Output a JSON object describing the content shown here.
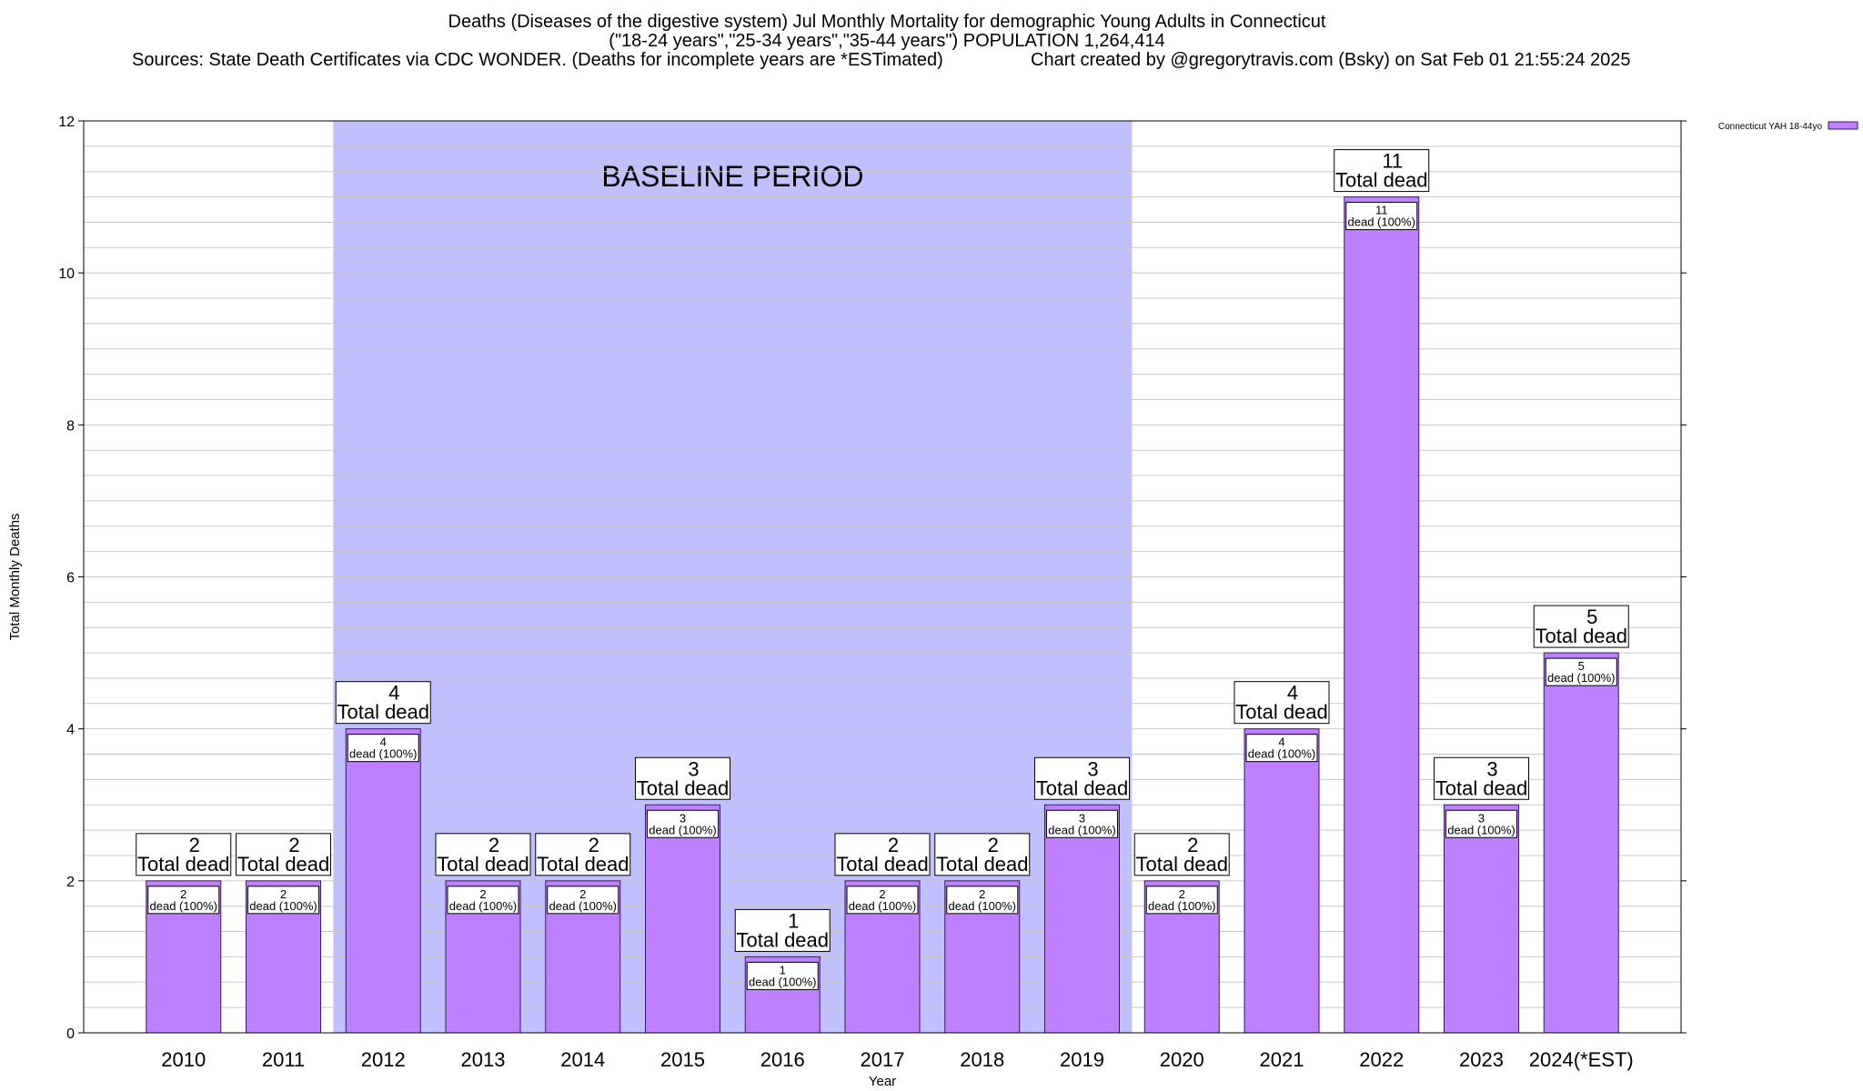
{
  "header": {
    "title_line1": "Deaths (Diseases of the digestive system) Jul Monthly Mortality for demographic Young Adults in Connecticut",
    "title_line2": "(\"18-24 years\",\"25-34 years\",\"35-44 years\") POPULATION 1,264,414",
    "sources": "Sources: State Death Certificates via CDC WONDER. (Deaths for incomplete years are *ESTimated)",
    "credit": "Chart created by @gregorytravis.com (Bsky) on Sat Feb 01 21:55:24 2025"
  },
  "chart_data": {
    "type": "bar",
    "categories": [
      "2010",
      "2011",
      "2012",
      "2013",
      "2014",
      "2015",
      "2016",
      "2017",
      "2018",
      "2019",
      "2020",
      "2021",
      "2022",
      "2023",
      "2024(*EST)"
    ],
    "series": [
      {
        "name": "Connecticut YAH 18-44yo",
        "values": [
          2,
          2,
          4,
          2,
          2,
          3,
          1,
          2,
          2,
          3,
          2,
          4,
          11,
          3,
          5
        ],
        "color": "#bf80ff"
      }
    ],
    "xlabel": "Year",
    "ylabel": "Total Monthly Deaths",
    "ylim": [
      0,
      12
    ],
    "yticks": [
      0,
      2,
      4,
      6,
      8,
      10,
      12
    ],
    "grid": true,
    "baseline": {
      "label": "BASELINE PERIOD",
      "from": "2012",
      "to": "2019",
      "color": "#c0c0ff"
    },
    "total_label_suffix": "Total dead",
    "inner_label_suffix": "dead (100%)",
    "legend_position": "top-right"
  }
}
